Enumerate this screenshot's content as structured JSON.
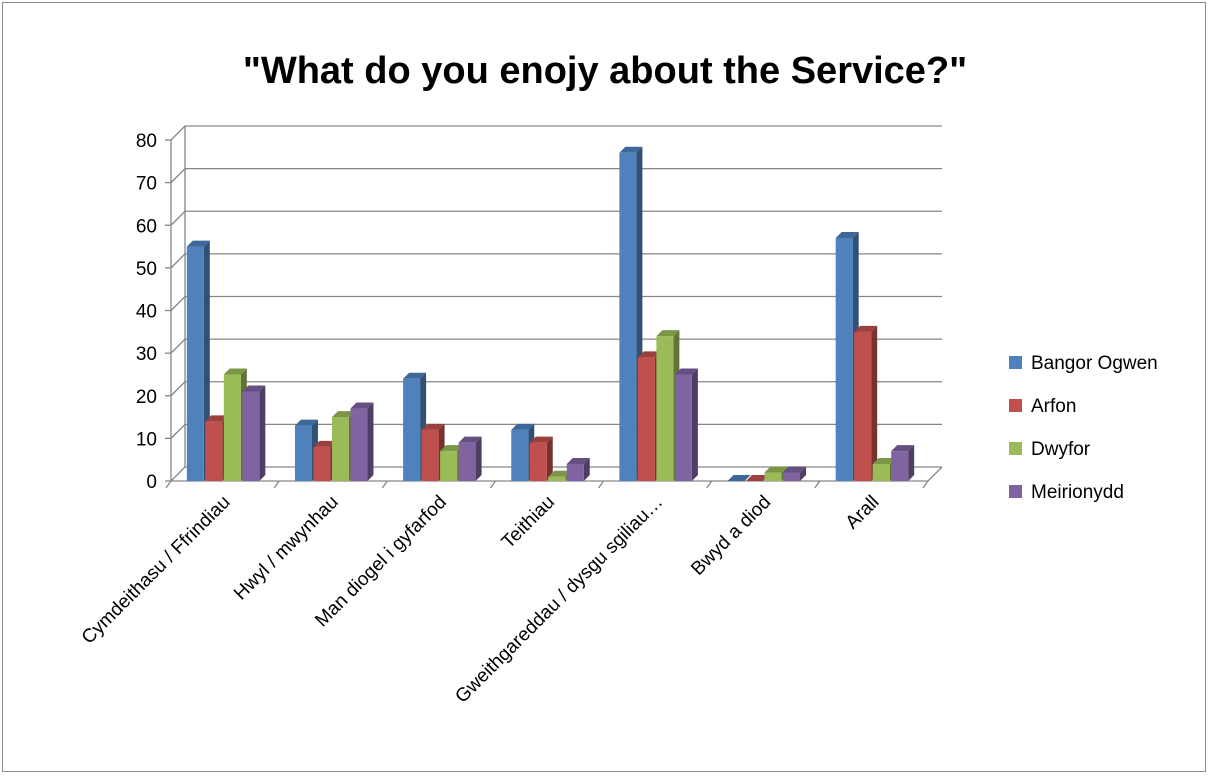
{
  "chart_data": {
    "type": "bar",
    "title": "\"What do you enojy about the Service?\"",
    "xlabel": "",
    "ylabel": "",
    "ylim": [
      0,
      80
    ],
    "yticks": [
      0,
      10,
      20,
      30,
      40,
      50,
      60,
      70,
      80
    ],
    "grid": true,
    "legend_position": "right",
    "categories": [
      "Cymdeithasu / Ffrindiau",
      "Hwyl / mwynhau",
      "Man diogel i gyfarfod",
      "Teithiau",
      "Gweithgareddau / dysgu sgiliau…",
      "Bwyd a diod",
      "Arall"
    ],
    "series": [
      {
        "name": "Bangor Ogwen",
        "color": "#4f81bd",
        "values": [
          55,
          13,
          24,
          12,
          77,
          0,
          57
        ]
      },
      {
        "name": "Arfon",
        "color": "#c0504d",
        "values": [
          14,
          8,
          12,
          9,
          29,
          0,
          35
        ]
      },
      {
        "name": "Dwyfor",
        "color": "#9bbb59",
        "values": [
          25,
          15,
          7,
          1,
          34,
          2,
          4
        ]
      },
      {
        "name": "Meirionydd",
        "color": "#8064a2",
        "values": [
          21,
          17,
          9,
          4,
          25,
          2,
          7
        ]
      }
    ]
  }
}
